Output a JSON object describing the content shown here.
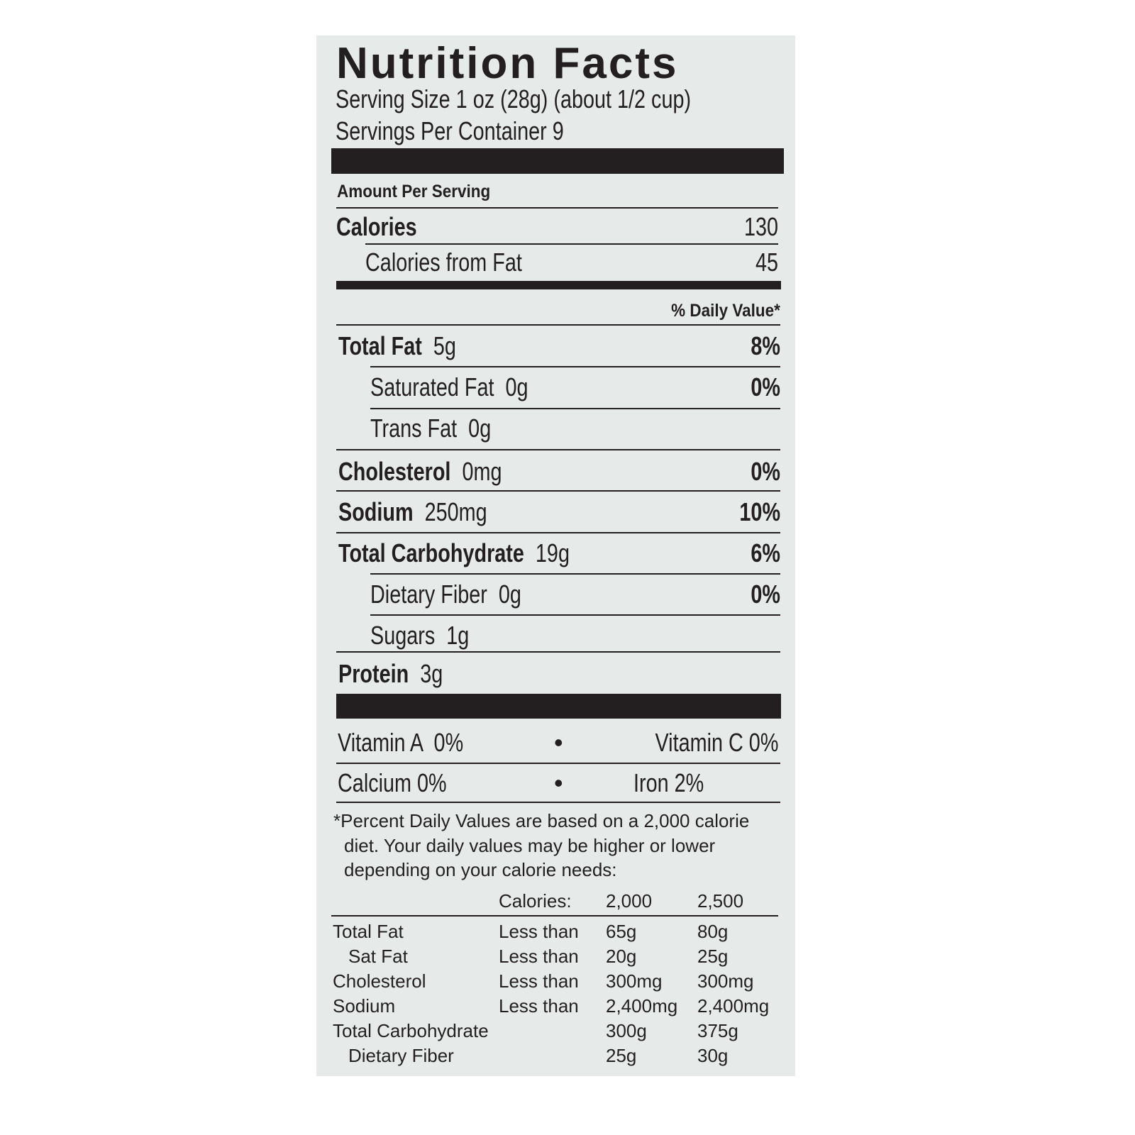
{
  "title": "Nutrition Facts",
  "serving_size": "Serving Size 1 oz (28g) (about 1/2 cup)",
  "servings_per_container": "Servings Per Container 9",
  "amount_per_serving": "Amount Per Serving",
  "calories": {
    "label": "Calories",
    "value": "130"
  },
  "calories_from_fat": {
    "label": "Calories from Fat",
    "value": "45"
  },
  "daily_value_header": "% Daily Value*",
  "nutrients": [
    {
      "label": "Total Fat",
      "amount": "5g",
      "dv": "8%"
    },
    {
      "label": "Saturated Fat",
      "amount": "0g",
      "dv": "0%"
    },
    {
      "label": "Trans Fat",
      "amount": "0g",
      "dv": ""
    },
    {
      "label": "Cholesterol",
      "amount": "0mg",
      "dv": "0%"
    },
    {
      "label": "Sodium",
      "amount": "250mg",
      "dv": "10%"
    },
    {
      "label": "Total Carbohydrate",
      "amount": "19g",
      "dv": "6%"
    },
    {
      "label": "Dietary Fiber",
      "amount": "0g",
      "dv": "0%"
    },
    {
      "label": "Sugars",
      "amount": "1g",
      "dv": ""
    },
    {
      "label": "Protein",
      "amount": "3g",
      "dv": ""
    }
  ],
  "vitamins": {
    "vitamin_a": "Vitamin A  0%",
    "vitamin_c": "Vitamin C 0%",
    "calcium": "Calcium 0%",
    "iron": "Iron 2%",
    "bullet": "•"
  },
  "footnote": [
    "*Percent Daily Values are based on a 2,000 calorie",
    "diet. Your daily values may be higher or lower",
    "depending on your calorie needs:"
  ],
  "dv_table": {
    "header": [
      "",
      "Calories:",
      "2,000",
      "2,500"
    ],
    "rows": [
      [
        "Total Fat",
        "Less than",
        "65g",
        "80g"
      ],
      [
        "Sat Fat",
        "Less than",
        "20g",
        "25g"
      ],
      [
        "Cholesterol",
        "Less than",
        "300mg",
        "300mg"
      ],
      [
        "Sodium",
        "Less than",
        "2,400mg",
        "2,400mg"
      ],
      [
        "Total Carbohydrate",
        "",
        "300g",
        "375g"
      ],
      [
        "Dietary Fiber",
        "",
        "25g",
        "30g"
      ]
    ]
  }
}
